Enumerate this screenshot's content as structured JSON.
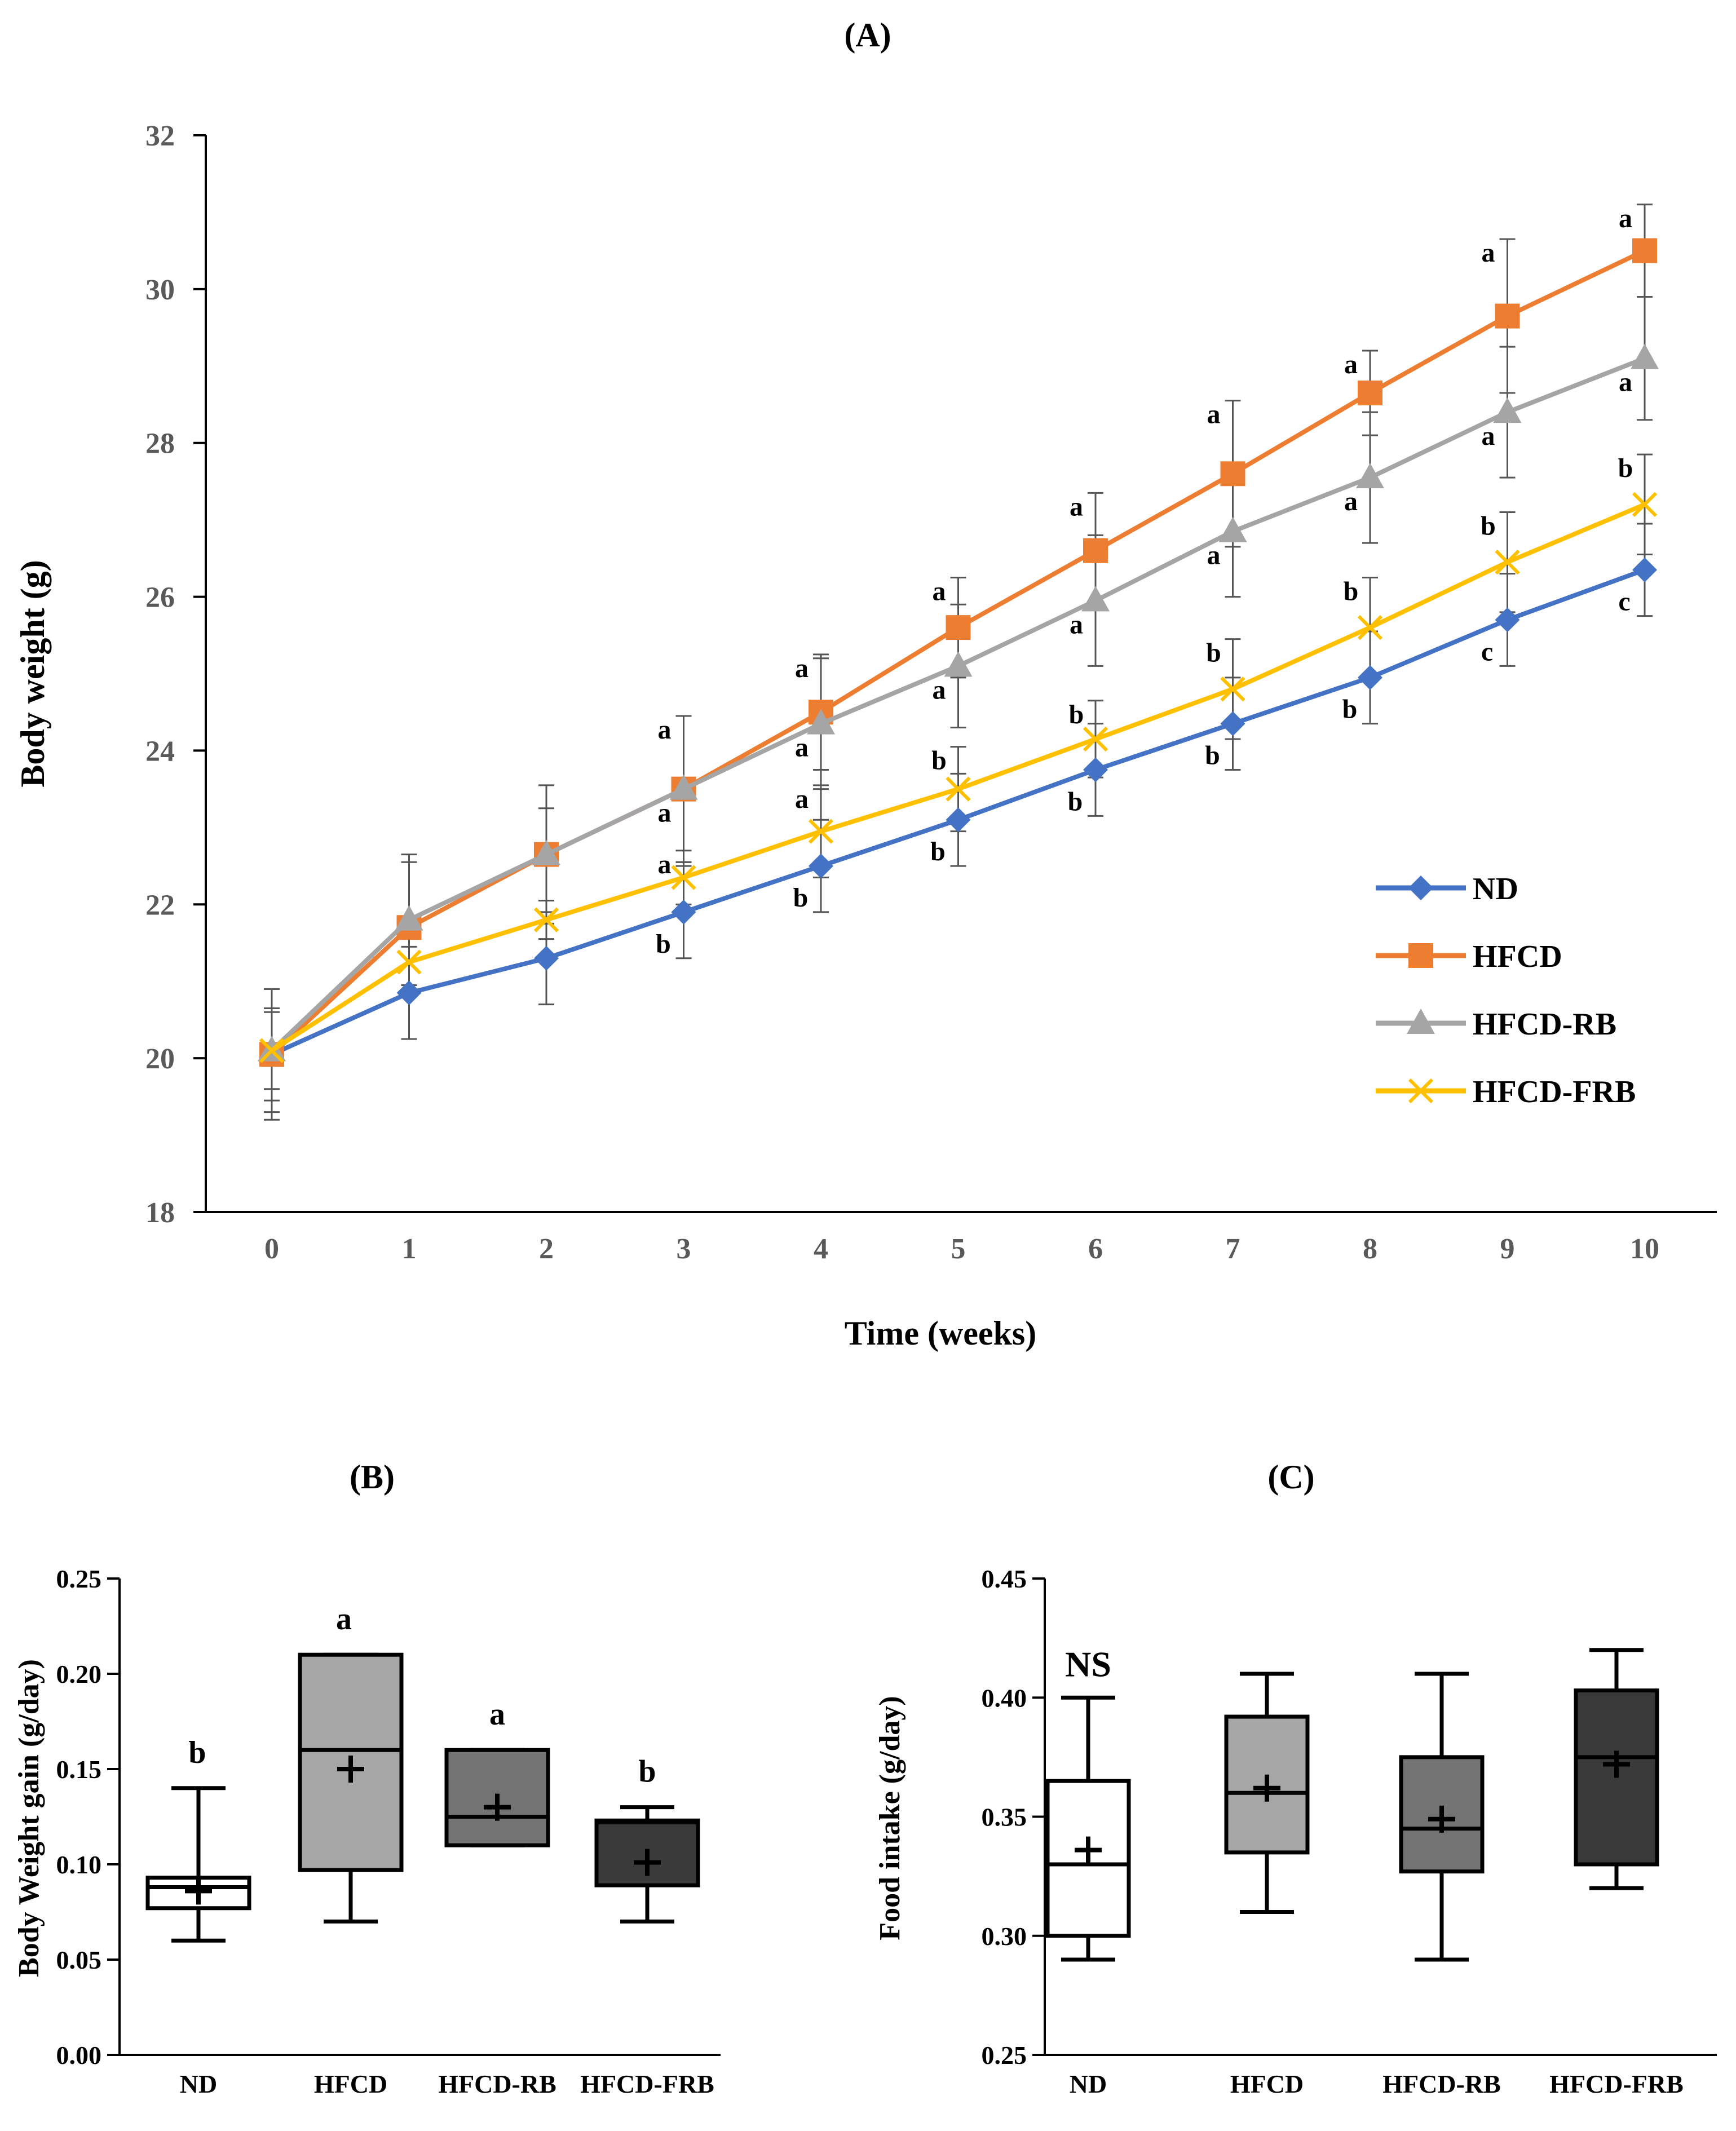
{
  "chart_data": [
    {
      "panel": "(A)",
      "type": "line",
      "title": "(A)",
      "xlabel": "Time (weeks)",
      "ylabel": "Body weight (g)",
      "x": [
        0,
        1,
        2,
        3,
        4,
        5,
        6,
        7,
        8,
        9,
        10
      ],
      "x_ticks": [
        "0",
        "1",
        "2",
        "3",
        "4",
        "5",
        "6",
        "7",
        "8",
        "9",
        "10"
      ],
      "ylim": [
        18,
        32
      ],
      "y_ticks": [
        "18",
        "20",
        "22",
        "24",
        "26",
        "28",
        "30",
        "32"
      ],
      "legend_position": "bottom-right",
      "grid": false,
      "series": [
        {
          "name": "ND",
          "color": "#4472C4",
          "marker": "diamond",
          "values": [
            20.05,
            20.85,
            21.3,
            21.9,
            22.5,
            23.1,
            23.75,
            24.35,
            24.95,
            25.7,
            26.35
          ],
          "errors": [
            0.6,
            0.6,
            0.6,
            0.6,
            0.6,
            0.6,
            0.6,
            0.6,
            0.6,
            0.6,
            0.6
          ],
          "letters": [
            "",
            "",
            "",
            "b",
            "b",
            "b",
            "b",
            "b",
            "b",
            "c",
            "c"
          ]
        },
        {
          "name": "HFCD",
          "color": "#ED7D31",
          "marker": "square",
          "values": [
            20.05,
            21.7,
            22.65,
            23.5,
            24.5,
            25.6,
            26.6,
            27.6,
            28.65,
            29.65,
            30.5
          ],
          "errors": [
            0.85,
            0.85,
            0.9,
            0.95,
            0.75,
            0.65,
            0.75,
            0.95,
            0.55,
            1.0,
            0.6
          ],
          "letters": [
            "",
            "",
            "",
            "a",
            "a",
            "a",
            "a",
            "a",
            "a",
            "a",
            "a"
          ]
        },
        {
          "name": "HFCD-RB",
          "color": "#A5A5A5",
          "marker": "triangle",
          "values": [
            20.1,
            21.8,
            22.65,
            23.5,
            24.35,
            25.1,
            25.95,
            26.85,
            27.55,
            28.4,
            29.1
          ],
          "errors": [
            0.8,
            0.85,
            0.6,
            0.95,
            0.85,
            0.8,
            0.85,
            0.85,
            0.85,
            0.85,
            0.8
          ],
          "letters": [
            "",
            "",
            "",
            "a",
            "a",
            "a",
            "a",
            "a",
            "a",
            "a",
            "a"
          ]
        },
        {
          "name": "HFCD-FRB",
          "color": "#FFC000",
          "marker": "x",
          "values": [
            20.1,
            21.25,
            21.8,
            22.35,
            22.95,
            23.5,
            24.15,
            24.8,
            25.6,
            26.45,
            27.2
          ],
          "errors": [
            0.5,
            0.4,
            0.25,
            0.35,
            0.6,
            0.55,
            0.5,
            0.65,
            0.65,
            0.65,
            0.65
          ],
          "letters": [
            "",
            "",
            "",
            "a",
            "a",
            "b",
            "b",
            "b",
            "b",
            "b",
            "b"
          ]
        }
      ]
    },
    {
      "panel": "(B)",
      "type": "box",
      "title": "(B)",
      "xlabel": "",
      "ylabel": "Body Weight gain (g/day)",
      "categories": [
        "ND",
        "HFCD",
        "HFCD-RB",
        "HFCD-FRB"
      ],
      "ylim": [
        0.0,
        0.25
      ],
      "y_ticks": [
        "0.00",
        "0.05",
        "0.10",
        "0.15",
        "0.20",
        "0.25"
      ],
      "boxes": [
        {
          "min": 0.06,
          "q1": 0.077,
          "median": 0.088,
          "q3": 0.093,
          "max": 0.14,
          "mean": 0.086,
          "fill": "#ffffff",
          "letter": "b"
        },
        {
          "min": 0.07,
          "q1": 0.097,
          "median": 0.16,
          "q3": 0.21,
          "max": 0.21,
          "mean": 0.15,
          "fill": "#a6a6a6",
          "letter": "a"
        },
        {
          "min": 0.11,
          "q1": 0.11,
          "median": 0.125,
          "q3": 0.16,
          "max": 0.16,
          "mean": 0.13,
          "fill": "#737373",
          "letter": "a"
        },
        {
          "min": 0.07,
          "q1": 0.089,
          "median": 0.122,
          "q3": 0.123,
          "max": 0.13,
          "mean": 0.101,
          "fill": "#3a3a3a",
          "letter": "b"
        }
      ]
    },
    {
      "panel": "(C)",
      "type": "box",
      "title": "(C)",
      "xlabel": "",
      "ylabel": "Food intake (g/day)",
      "categories": [
        "ND",
        "HFCD",
        "HFCD-RB",
        "HFCD-FRB"
      ],
      "ylim": [
        0.25,
        0.45
      ],
      "y_ticks": [
        "0.25",
        "0.30",
        "0.35",
        "0.40",
        "0.45"
      ],
      "annotation": "NS",
      "boxes": [
        {
          "min": 0.29,
          "q1": 0.3,
          "median": 0.33,
          "q3": 0.365,
          "max": 0.4,
          "mean": 0.336,
          "fill": "#ffffff"
        },
        {
          "min": 0.31,
          "q1": 0.335,
          "median": 0.36,
          "q3": 0.392,
          "max": 0.41,
          "mean": 0.362,
          "fill": "#a6a6a6"
        },
        {
          "min": 0.29,
          "q1": 0.327,
          "median": 0.345,
          "q3": 0.375,
          "max": 0.41,
          "mean": 0.349,
          "fill": "#737373"
        },
        {
          "min": 0.32,
          "q1": 0.33,
          "median": 0.375,
          "q3": 0.403,
          "max": 0.42,
          "mean": 0.372,
          "fill": "#3a3a3a"
        }
      ]
    }
  ]
}
